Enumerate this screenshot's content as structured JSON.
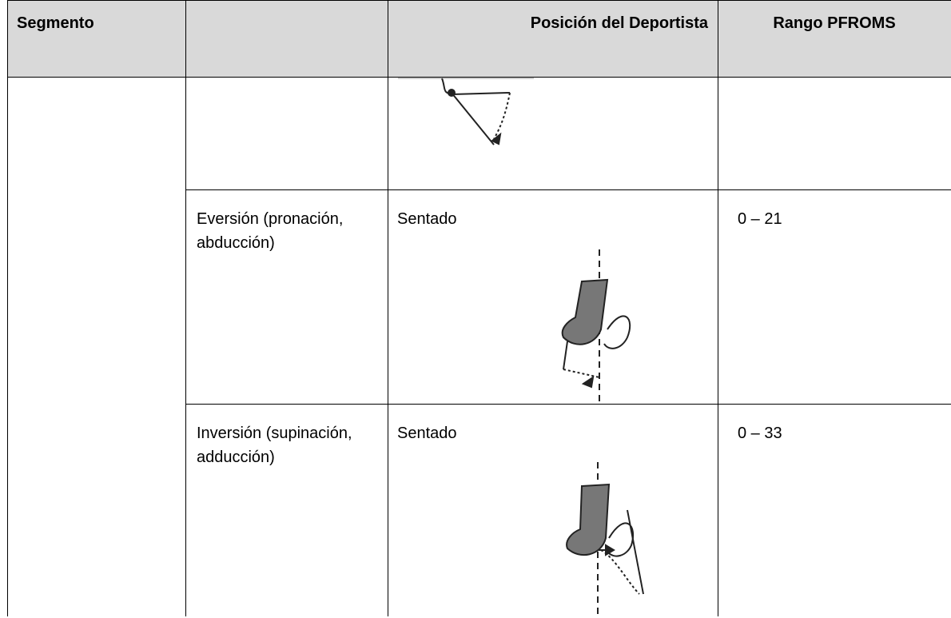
{
  "table": {
    "header": {
      "segment": "Segmento",
      "position": "Posición del Deportista",
      "range": "Rango PFROMS"
    },
    "rows": [
      {
        "movement": "Eversión (pronación, abducción)",
        "position": "Sentado",
        "range": "0 – 21"
      },
      {
        "movement": "Inversión (supinación, adducción)",
        "position": "Sentado",
        "range": "0 – 33"
      }
    ]
  }
}
